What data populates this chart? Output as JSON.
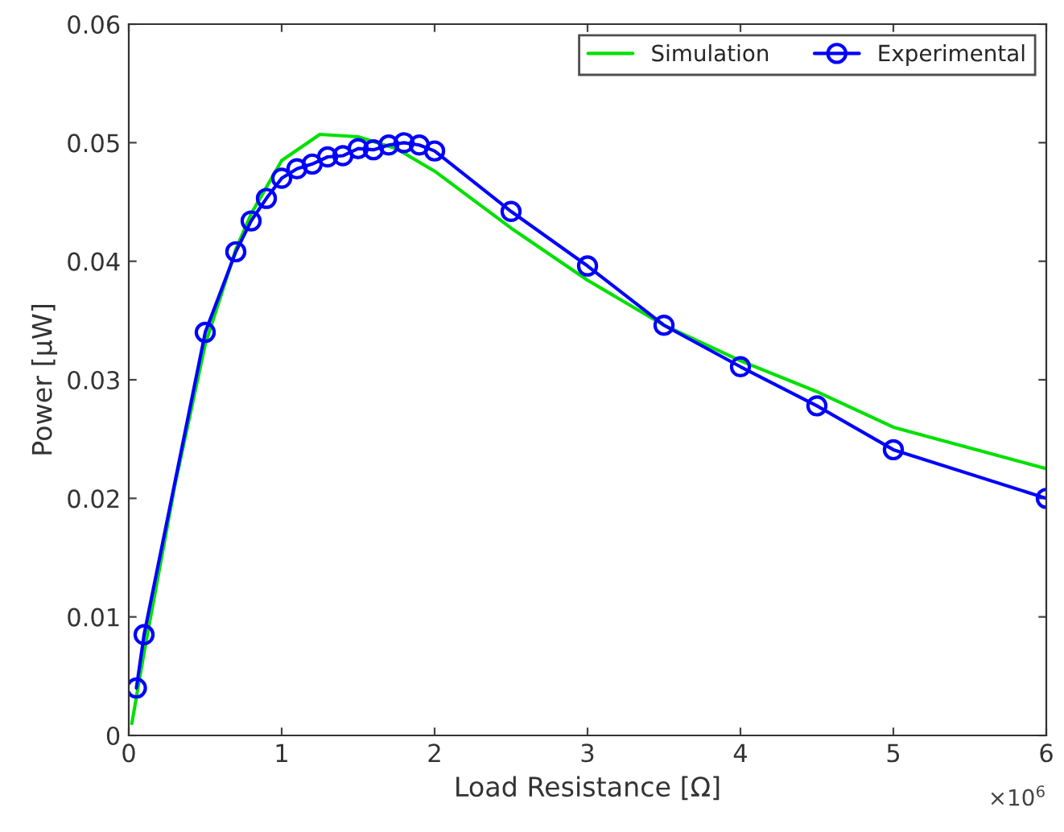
{
  "chart_data": {
    "type": "line",
    "xlabel": "Load Resistance [Ω]",
    "ylabel": "Power [μW]",
    "xlim": [
      0,
      6
    ],
    "xticks": [
      0,
      1,
      2,
      3,
      4,
      5,
      6
    ],
    "ylim": [
      0,
      0.06
    ],
    "yticks": [
      0,
      0.01,
      0.02,
      0.03,
      0.04,
      0.05,
      0.06
    ],
    "annotations": [
      "×10$^{6}$"
    ],
    "legend": "top right",
    "grid": false,
    "series": [
      {
        "name": "Simulation",
        "color": "#00e000",
        "marker": "none",
        "x": [
          0.02,
          0.1,
          0.3,
          0.5,
          0.7,
          0.8,
          1.0,
          1.25,
          1.5,
          1.75,
          2.0,
          2.5,
          3.0,
          3.5,
          4.0,
          4.5,
          5.0,
          6.0
        ],
        "values": [
          0.001,
          0.007,
          0.021,
          0.033,
          0.041,
          0.044,
          0.0485,
          0.0507,
          0.0505,
          0.0495,
          0.0476,
          0.0428,
          0.0384,
          0.0346,
          0.0316,
          0.029,
          0.026,
          0.0225
        ]
      },
      {
        "name": "Experimental",
        "color": "#0000ff",
        "marker": "circle",
        "x": [
          0.05,
          0.1,
          0.5,
          0.7,
          0.8,
          0.9,
          1.0,
          1.1,
          1.2,
          1.3,
          1.4,
          1.5,
          1.6,
          1.7,
          1.8,
          1.9,
          2.0,
          2.5,
          3.0,
          3.5,
          4.0,
          4.5,
          5.0,
          6.0
        ],
        "values": [
          0.004,
          0.0085,
          0.034,
          0.0408,
          0.0434,
          0.0453,
          0.047,
          0.0478,
          0.0482,
          0.0488,
          0.0489,
          0.0495,
          0.0494,
          0.0498,
          0.05,
          0.0498,
          0.0493,
          0.0442,
          0.0396,
          0.0346,
          0.0311,
          0.0278,
          0.0241,
          0.02
        ]
      }
    ]
  }
}
